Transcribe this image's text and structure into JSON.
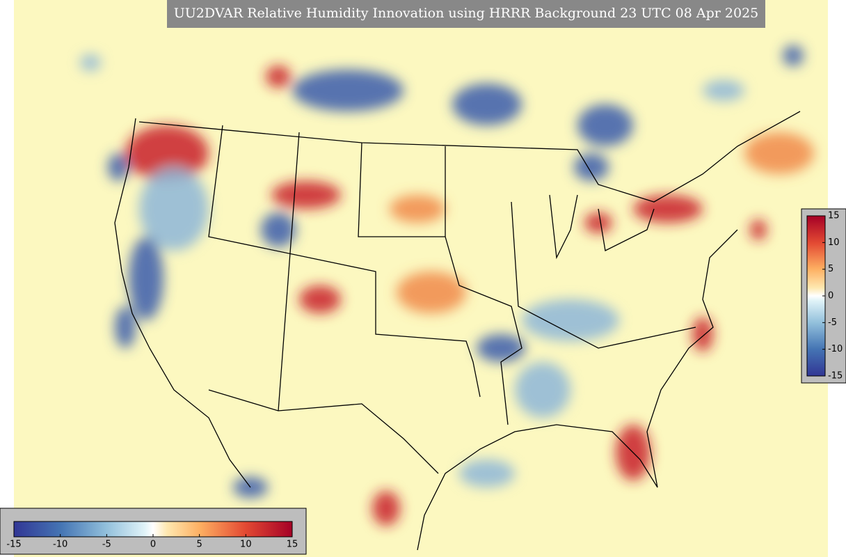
{
  "title": "UU2DVAR Relative Humidity Innovation using HRRR Background 23 UTC 08 Apr 2025",
  "colorbars": [
    {
      "orientation": "horizontal",
      "range": [
        -15,
        15
      ],
      "ticks": [
        -15,
        -10,
        -5,
        0,
        5,
        10,
        15
      ]
    },
    {
      "orientation": "vertical",
      "range": [
        -15,
        15
      ],
      "ticks": [
        -15,
        -10,
        -5,
        0,
        5,
        10,
        15
      ]
    }
  ]
}
